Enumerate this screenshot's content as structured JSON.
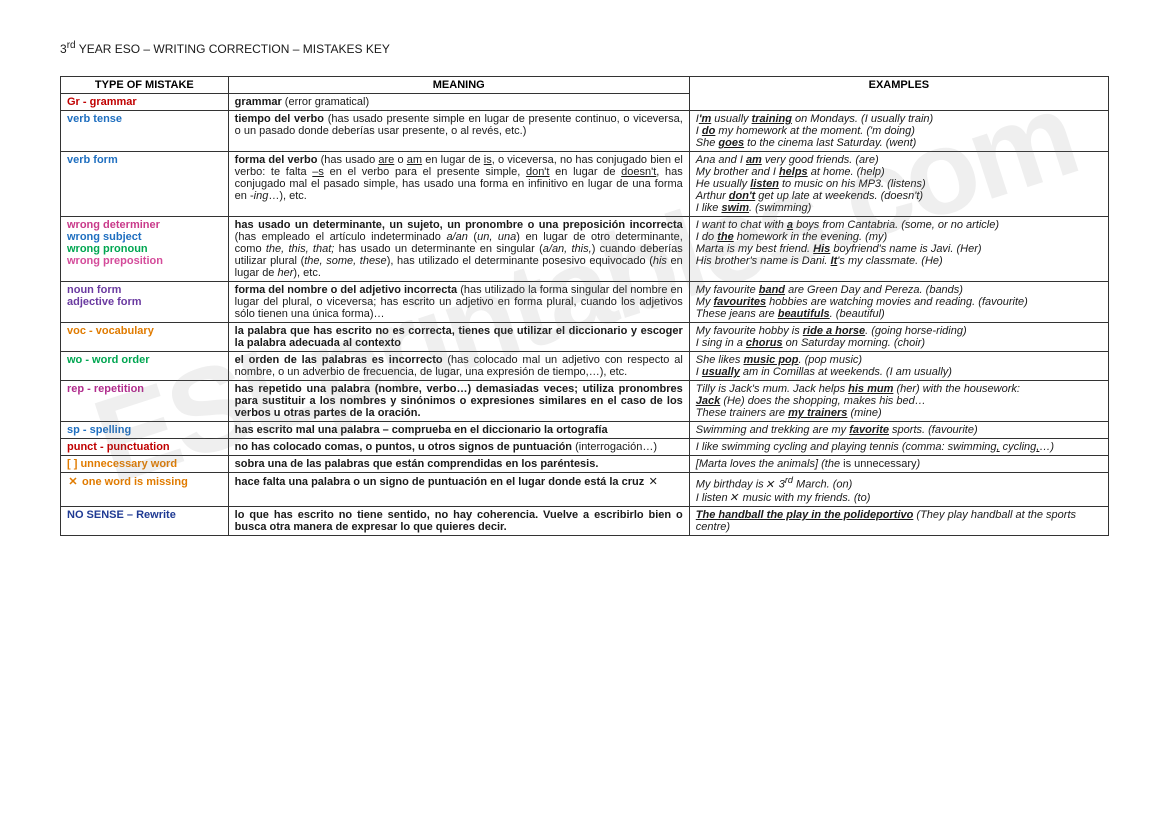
{
  "doc_title": "3rd YEAR ESO – WRITING CORRECTION – MISTAKES KEY",
  "headers": {
    "type": "TYPE OF MISTAKE",
    "meaning": "MEANING",
    "examples": "EXAMPLES"
  },
  "colors": {
    "gr": "#c00000",
    "verb": "#1f6fc0",
    "wrong_det": "#c93a8a",
    "wrong_subj": "#1f6fc0",
    "wrong_pron": "#00a651",
    "wrong_prep": "#d44b9a",
    "noun": "#6a3aa0",
    "voc": "#e07b00",
    "wo": "#00a651",
    "rep": "#b02b8c",
    "sp": "#1f6fc0",
    "punct": "#c00000",
    "unnecessary": "#e07b00",
    "missing": "#e07b00",
    "nosense": "#1f3a93"
  },
  "rows": {
    "gr": {
      "label": "Gr - grammar",
      "meaning": "<span class='b'>grammar</span> (error gramatical)",
      "examples": ""
    },
    "verbtense": {
      "label": "verb tense",
      "meaning": "<span class='b'>tiempo del verbo</span> (has usado presente simple en lugar de presente continuo, o viceversa, o un pasado donde deberías usar presente, o al revés, etc.)",
      "examples": "I<span class='b u'>'m</span> usually <span class='b u'>training</span> on Mondays. (I usually train)<br>I <span class='b u'>do</span> my homework at the moment. ('m doing)<br>She <span class='b u'>goes</span> to the cinema last Saturday. (went)"
    },
    "verbform": {
      "label": "verb form",
      "meaning": "<span class='b'>forma del verbo</span> (has usado <span class='u'>are</span> o <span class='u'>am</span> en lugar de <span class='u'>is</span>, o viceversa, no has conjugado bien el verbo: te falta <span class='u'>–s</span> en el verbo para el presente simple, <span class='u'>don't</span> en lugar de <span class='u'>doesn't</span>, has conjugado mal el pasado simple, has usado una forma en infinitivo en lugar de una forma en -<span class='i'>ing</span>…), etc.",
      "examples": "Ana and I <span class='b u'>am</span> very good friends. (are)<br>My brother and I <span class='b u'>helps</span> at home. (help)<br>He usually <span class='b u'>listen</span> to music on his MP3. (listens)<br>Arthur <span class='b u'>don't</span> get up late at weekends. (doesn't)<br>I like <span class='b u'>swim</span>. (swimming)"
    },
    "wrong": {
      "labels": [
        "wrong determiner",
        "wrong subject",
        "wrong pronoun",
        "wrong preposition"
      ],
      "meaning": "<span class='b'>has usado un determinante, un sujeto, un pronombre o una preposición incorrecta</span> (has empleado el artículo indeterminado <span class='i'>a/an</span> (<span class='i'>un, una</span>) en lugar de otro determinante, como <span class='i'>the, this, that;</span> has usado un determinante en singular (<span class='i'>a/an, this,</span>) cuando deberías utilizar plural (<span class='i'>the, some, these</span>), has utilizado el determinante posesivo equivocado (<span class='i'>his</span> en lugar de <span class='i'>her</span>), etc.",
      "examples": "I want to chat with <span class='b u'>a</span> boys from Cantabria. (some,  or no article)<br>I do <span class='b u'>the</span> homework in the evening. (my)<br>Marta is my best friend. <span class='b u'>His</span> boyfriend's name is Javi. (Her)<br>His brother's name is Dani. <span class='b u'>It</span>'s my classmate. (He)"
    },
    "nounadj": {
      "labels": [
        "noun form",
        "adjective form"
      ],
      "meaning": "<span class='b'>forma del nombre o del adjetivo incorrecta</span> (has utilizado la forma singular del nombre en lugar del plural, o viceversa; has escrito un adjetivo en forma plural, cuando los adjetivos sólo tienen una única forma)…",
      "examples": "My favourite <span class='b u'>band</span> are Green Day and Pereza. (bands)<br>My <span class='b u'>favourites</span> hobbies are watching movies and reading. (favourite)<br>These jeans are <span class='b u'>beautifuls</span>. (beautiful)"
    },
    "voc": {
      "label": "voc - vocabulary",
      "meaning": "<span class='b'>la palabra que has escrito no es correcta, tienes que utilizar el diccionario y escoger la palabra adecuada al contexto</span>",
      "examples": "My favourite hobby is <span class='b u'>ride a horse</span>. (going horse-riding)<br>I sing in a <span class='b u'>chorus</span> on Saturday morning. (choir)"
    },
    "wo": {
      "label": "wo - word order",
      "meaning": "<span class='b'>el orden de las palabras es incorrecto</span> (has colocado mal un adjetivo con respecto al nombre, o un adverbio de frecuencia, de lugar, una expresión de tiempo,…), etc.",
      "examples": "She likes <span class='b u'>music pop</span>. (pop music)<br>I <span class='b u'>usually</span> am in Comillas at weekends. (I am usually)"
    },
    "rep": {
      "label": "rep - repetition",
      "meaning": "<span class='b'>has repetido una palabra (nombre, verbo…) demasiadas veces; utiliza pronombres para sustituir a los nombres y sinónimos o expresiones similares en el caso de los verbos u otras partes de la oración.</span>",
      "examples": "Tilly is Jack's mum. Jack helps <span class='b u'>his mum</span> (her) with the housework:<br><span class='b u'>Jack</span> (He) does the shopping, makes his bed…<br>These trainers are <span class='b u'>my trainers</span> (mine)"
    },
    "sp": {
      "label": "sp - spelling",
      "meaning": "<span class='b'>has escrito mal una palabra – comprueba en el diccionario la ortografía</span>",
      "examples": "Swimming and trekking are my <span class='b u'>favorite</span> sports. (favourite)"
    },
    "punct": {
      "label": "punct - punctuation",
      "meaning": "<span class='b'>no has colocado comas, o puntos, u otros signos de puntuación</span> (interrogación…)",
      "examples": "I like swimming cycling and playing tennis (comma: swimming<span class='u'>,</span> cycling<span class='u'>,</span>…)"
    },
    "unnecessary": {
      "label": "[   ] unnecessary word",
      "meaning": "<span class='b'>sobra una de las palabras que están comprendidas en los paréntesis.</span>",
      "examples": "[Marta loves the animals] (the <span style='font-style:normal'>is unnecessary</span>)"
    },
    "missing": {
      "label": " one word is missing",
      "meaning": "<span class='b'>hace falta una palabra o un signo de puntuación en el lugar donde está la cruz </span><span class='x-icon'>✕</span>",
      "examples": "My birthday is<span class='x-icon'>✕</span> 3<sup>rd</sup> March. (on)<br>I listen<span class='x-icon'>✕</span> music with my friends. (to)"
    },
    "nosense": {
      "label": "NO SENSE – Rewrite",
      "meaning": "<span class='b'>lo que has escrito no tiene sentido, no hay coherencia. Vuelve a escribirlo bien o busca otra manera de expresar lo que quieres decir.</span>",
      "examples": "<span class='b u'>The handball the play in the polideportivo</span> (They play handball at the sports centre)"
    }
  },
  "watermark": "ESLprintables.com"
}
